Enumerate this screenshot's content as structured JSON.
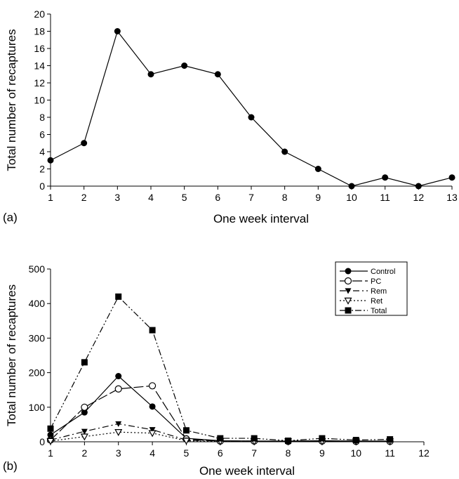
{
  "chart_data": [
    {
      "type": "line",
      "panel_label": "(a)",
      "xlabel": "One week interval",
      "ylabel": "Total number of recaptures",
      "x": [
        1,
        2,
        3,
        4,
        5,
        6,
        7,
        8,
        9,
        10,
        11,
        12,
        13
      ],
      "xlim": [
        1,
        13
      ],
      "ylim": [
        0,
        20
      ],
      "x_ticks": [
        1,
        2,
        3,
        4,
        5,
        6,
        7,
        8,
        9,
        10,
        11,
        12,
        13
      ],
      "y_ticks": [
        0,
        2,
        4,
        6,
        8,
        10,
        12,
        14,
        16,
        18,
        20
      ],
      "series": [
        {
          "values": [
            3,
            5,
            18,
            13,
            14,
            13,
            8,
            4,
            2,
            0,
            1,
            0,
            1
          ],
          "marker": "filled-circle",
          "dash": ""
        }
      ],
      "grid": false
    },
    {
      "type": "line",
      "panel_label": "(b)",
      "xlabel": "One week interval",
      "ylabel": "Total number of recaptures",
      "x_ticks": [
        1,
        2,
        3,
        4,
        5,
        6,
        7,
        8,
        9,
        10,
        11,
        12
      ],
      "y_ticks": [
        0,
        100,
        200,
        300,
        400,
        500
      ],
      "xlim": [
        1,
        12
      ],
      "ylim": [
        0,
        500
      ],
      "legend_position": "top-right",
      "series": [
        {
          "name": "Control",
          "x": [
            1,
            2,
            3,
            4,
            5,
            6,
            7,
            8,
            9,
            10,
            11
          ],
          "values": [
            20,
            85,
            190,
            102,
            10,
            3,
            2,
            2,
            3,
            2,
            2
          ],
          "marker": "filled-circle",
          "dash": ""
        },
        {
          "name": "PC",
          "x": [
            1,
            2,
            3,
            4,
            5,
            6,
            7,
            8,
            9,
            10,
            11
          ],
          "values": [
            5,
            100,
            153,
            162,
            8,
            2,
            2,
            1,
            2,
            1,
            1
          ],
          "marker": "open-circle",
          "dash": "14 4"
        },
        {
          "name": "Rem",
          "x": [
            1,
            2,
            3,
            4,
            5,
            6,
            7,
            8,
            9,
            10,
            11
          ],
          "values": [
            5,
            30,
            52,
            35,
            5,
            2,
            2,
            1,
            2,
            1,
            1
          ],
          "marker": "filled-triangle-down",
          "dash": "9 4 2 4"
        },
        {
          "name": "Ret",
          "x": [
            1,
            2,
            3,
            4,
            5,
            6,
            7,
            8,
            9,
            10,
            11
          ],
          "values": [
            2,
            15,
            28,
            25,
            3,
            1,
            1,
            1,
            1,
            1,
            1
          ],
          "marker": "open-triangle-down",
          "dash": "2 3"
        },
        {
          "name": "Total",
          "x": [
            1,
            2,
            3,
            4,
            5,
            6,
            7,
            8,
            9,
            10,
            11
          ],
          "values": [
            38,
            230,
            420,
            323,
            33,
            10,
            10,
            3,
            10,
            5,
            7
          ],
          "marker": "filled-square",
          "dash": "9 3 2 3 2 3"
        }
      ],
      "grid": false
    }
  ]
}
